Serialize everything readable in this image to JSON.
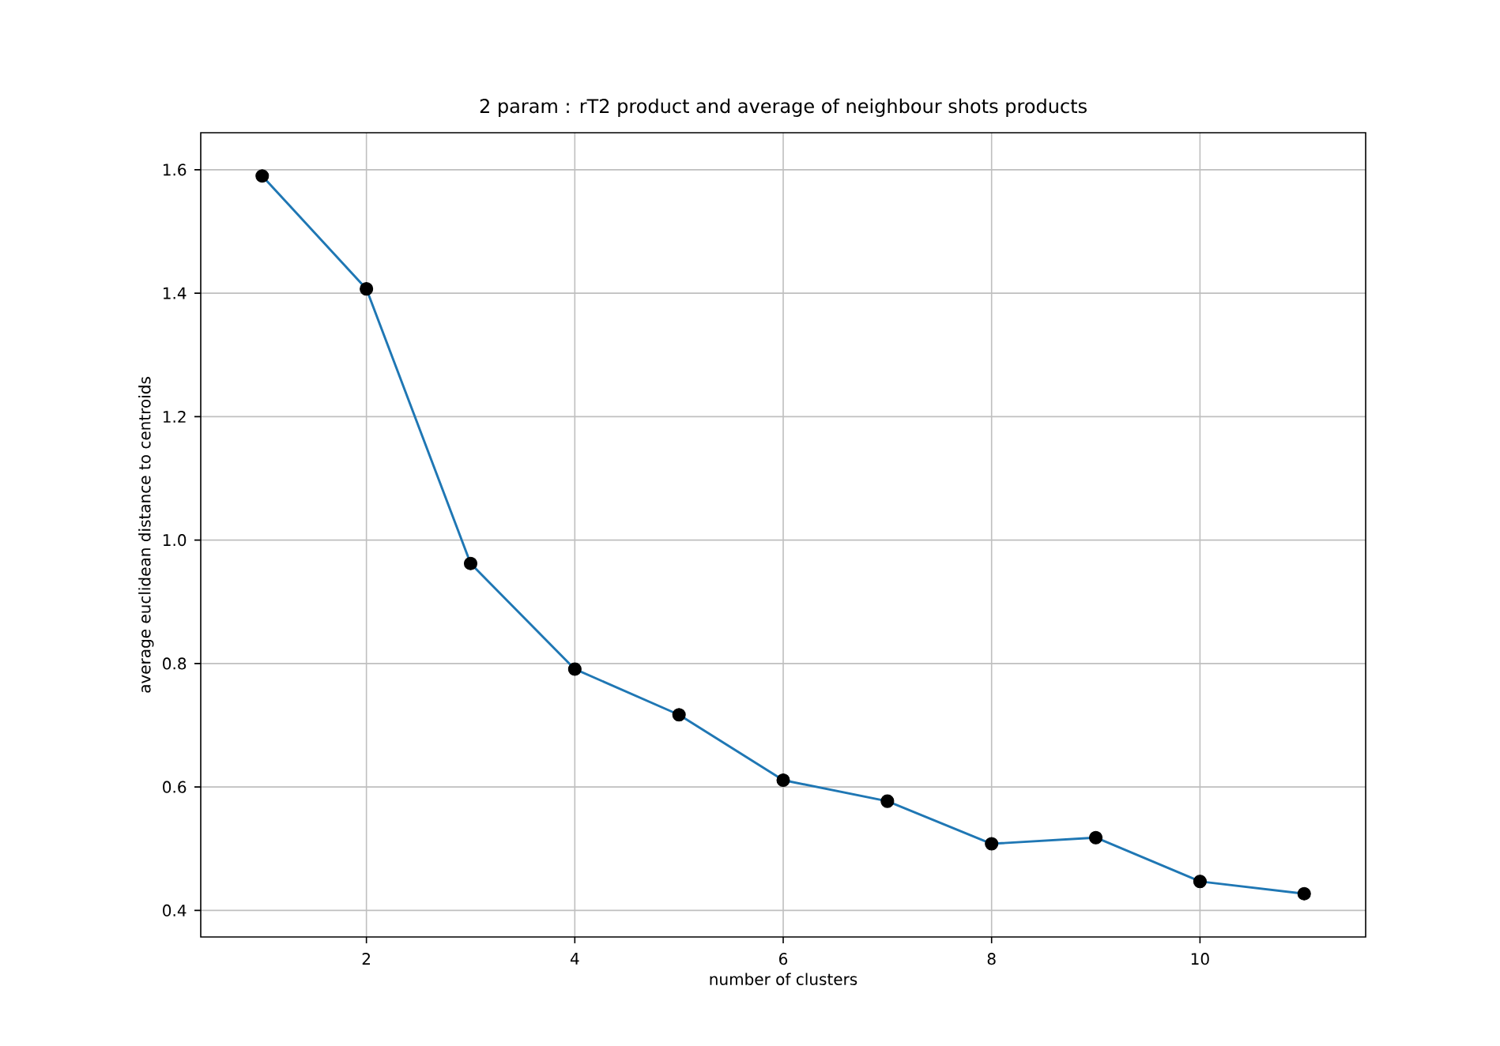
{
  "chart_data": {
    "type": "line",
    "title": "2 param : rT2 product and average of neighbour shots products",
    "xlabel": "number of clusters",
    "ylabel": "average euclidean distance to centroids",
    "x": [
      1,
      2,
      3,
      4,
      5,
      6,
      7,
      8,
      9,
      10,
      11
    ],
    "series": [
      {
        "color": "#1f77b4",
        "values": [
          1.59,
          1.407,
          0.962,
          0.791,
          0.717,
          0.611,
          0.577,
          0.508,
          0.518,
          0.447,
          0.427
        ]
      },
      {
        "type": "scatter",
        "color": "#000000",
        "values": [
          1.59,
          1.407,
          0.962,
          0.791,
          0.717,
          0.611,
          0.577,
          0.508,
          0.518,
          0.447,
          0.427
        ]
      }
    ],
    "xlim": [
      0.41,
      11.59
    ],
    "ylim": [
      0.357,
      1.66
    ],
    "xticks": [
      2,
      4,
      6,
      8,
      10
    ],
    "yticks": [
      0.4,
      0.6,
      0.8,
      {
        "value": 1.0,
        "label": "1.0"
      },
      1.2,
      1.4,
      1.6
    ],
    "grid": true
  }
}
